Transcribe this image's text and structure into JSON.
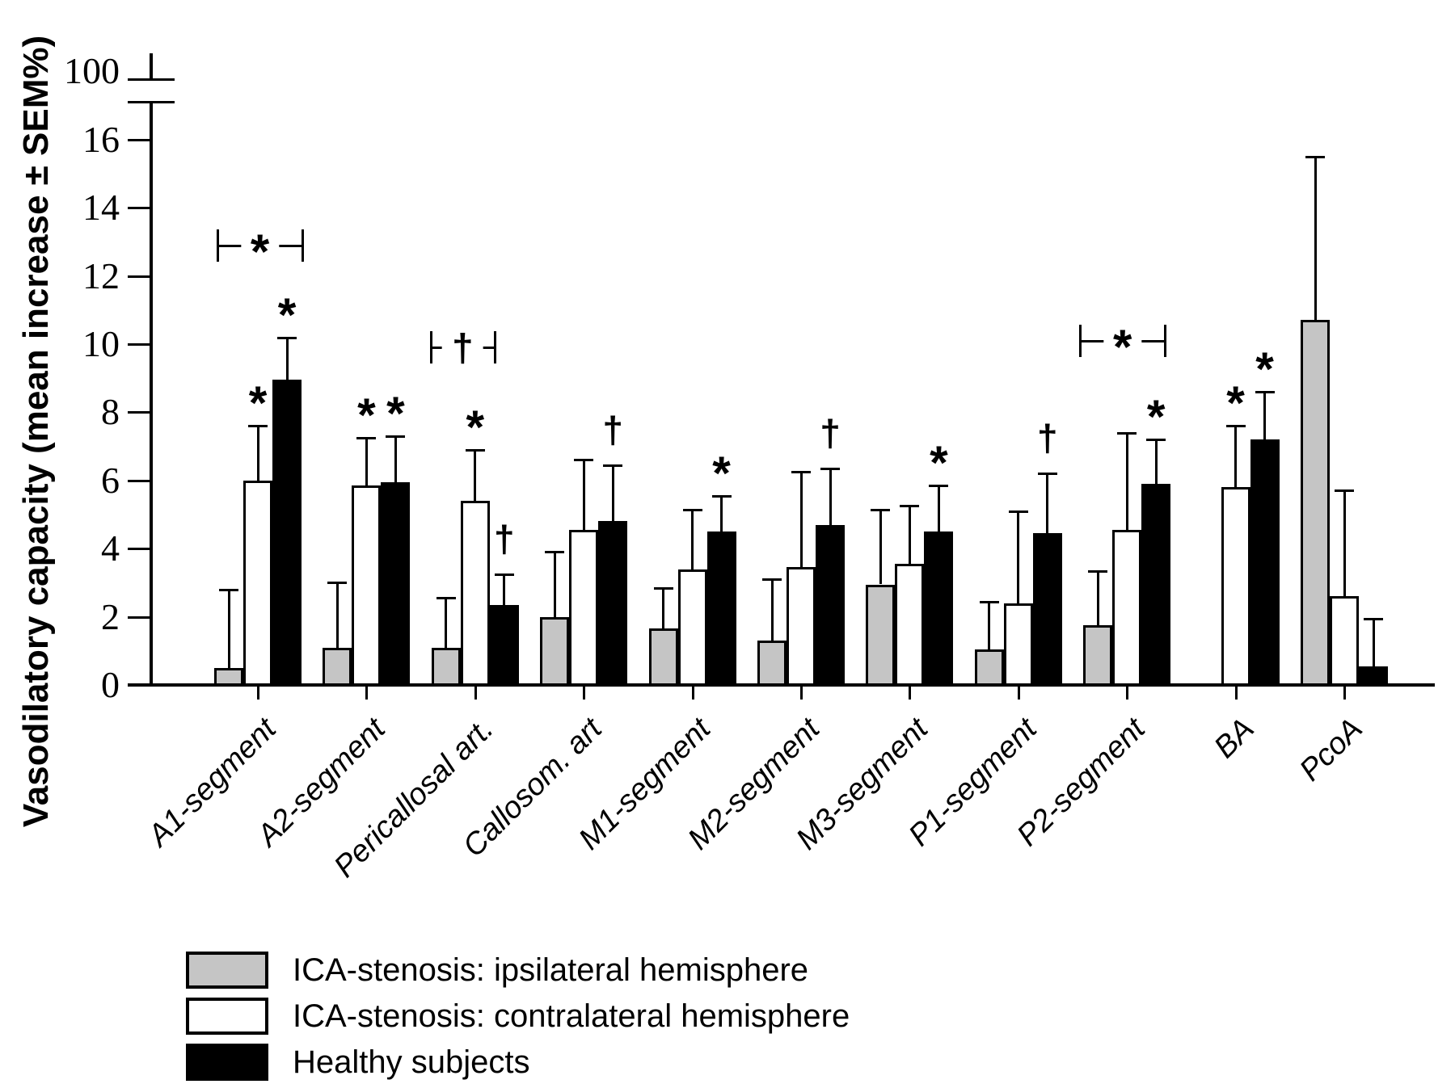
{
  "figure": {
    "ylabel": "Vasodilatory capacity (mean increase ± SEM%)",
    "y_axis": {
      "ticks": [
        0,
        2,
        4,
        6,
        8,
        10,
        12,
        14,
        16
      ],
      "break_top_label": "100"
    }
  },
  "chart_data": {
    "type": "bar",
    "title": "",
    "xlabel": "",
    "ylabel": "Vasodilatory capacity (mean increase ± SEM%)",
    "ylim": [
      0,
      17
    ],
    "grid": false,
    "legend_position": "bottom-left",
    "y_ticks": [
      0,
      2,
      4,
      6,
      8,
      10,
      12,
      14,
      16
    ],
    "y_axis_break_top_tick": "100",
    "error_bars": "SEM, upper side only",
    "categories": [
      "A1-segment",
      "A2-segment",
      "Pericallosal art.",
      "Callosom. art",
      "M1-segment",
      "M2-segment",
      "M3-segment",
      "P1-segment",
      "P2-segment",
      "BA",
      "PcoA"
    ],
    "series": [
      {
        "name": "ICA-stenosis: ipsilateral hemisphere",
        "color": "#c5c5c5",
        "values": [
          0.5,
          1.1,
          1.1,
          2.0,
          1.65,
          1.3,
          2.95,
          1.05,
          1.75,
          null,
          10.7
        ],
        "sem": [
          2.3,
          1.9,
          1.45,
          1.9,
          1.2,
          1.8,
          2.2,
          1.4,
          1.6,
          null,
          4.8
        ],
        "sig_markers": [
          "",
          "",
          "",
          "",
          "",
          "",
          "",
          "",
          "",
          "",
          ""
        ]
      },
      {
        "name": "ICA-stenosis: contralateral hemisphere",
        "color": "#ffffff",
        "values": [
          6.0,
          5.85,
          5.4,
          4.55,
          3.4,
          3.45,
          3.55,
          2.4,
          4.55,
          5.8,
          2.6
        ],
        "sem": [
          1.6,
          1.4,
          1.5,
          2.05,
          1.75,
          2.8,
          1.7,
          2.7,
          2.85,
          1.8,
          3.1
        ],
        "sig_markers": [
          "*",
          "*",
          "*",
          "",
          "",
          "",
          "",
          "",
          "",
          "*",
          ""
        ]
      },
      {
        "name": "Healthy subjects",
        "color": "#000000",
        "values": [
          8.95,
          5.95,
          2.35,
          4.8,
          4.5,
          4.7,
          4.5,
          4.45,
          5.9,
          7.2,
          0.55
        ],
        "sem": [
          1.25,
          1.35,
          0.9,
          1.65,
          1.05,
          1.65,
          1.35,
          1.75,
          1.3,
          1.4,
          1.4
        ],
        "sig_markers": [
          "*",
          "*",
          "†",
          "†",
          "*",
          "†",
          "*",
          "†",
          "*",
          "*",
          ""
        ]
      }
    ],
    "comparison_brackets": [
      {
        "category": "A1-segment",
        "symbol": "*",
        "y_value": 12.9
      },
      {
        "category": "Pericallosal art.",
        "symbol": "†",
        "y_value": 9.9
      },
      {
        "category": "P2-segment",
        "symbol": "*",
        "y_value": 10.1
      }
    ]
  },
  "legend": {
    "items": [
      {
        "label": "ICA-stenosis: ipsilateral hemisphere",
        "color": "#c5c5c5"
      },
      {
        "label": "ICA-stenosis: contralateral hemisphere",
        "color": "#ffffff"
      },
      {
        "label": "Healthy subjects",
        "color": "#000000"
      }
    ]
  }
}
